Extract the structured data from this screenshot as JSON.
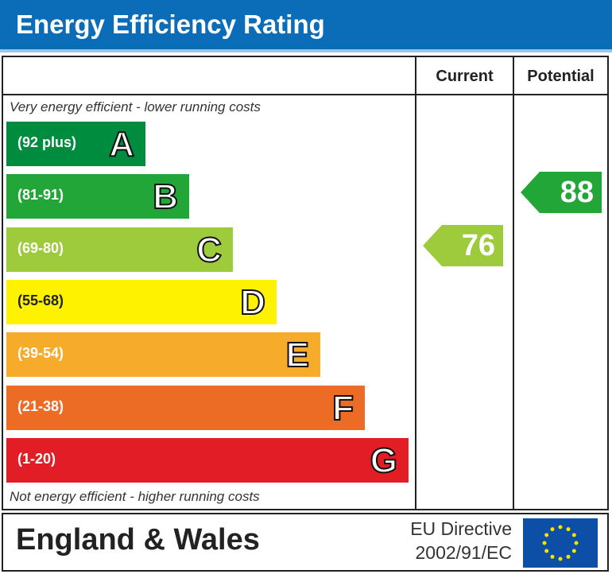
{
  "title": "Energy Efficiency Rating",
  "columns": {
    "current": "Current",
    "potential": "Potential"
  },
  "notes": {
    "top": "Very energy efficient - lower running costs",
    "bottom": "Not energy efficient - higher running costs"
  },
  "chart_data": {
    "type": "bar",
    "bands": [
      {
        "letter": "A",
        "range": "(92 plus)",
        "color": "#008c3e"
      },
      {
        "letter": "B",
        "range": "(81-91)",
        "color": "#23a638"
      },
      {
        "letter": "C",
        "range": "(69-80)",
        "color": "#9dcb3c"
      },
      {
        "letter": "D",
        "range": "(55-68)",
        "color": "#fff200"
      },
      {
        "letter": "E",
        "range": "(39-54)",
        "color": "#f6ab2a"
      },
      {
        "letter": "F",
        "range": "(21-38)",
        "color": "#ec6b25"
      },
      {
        "letter": "G",
        "range": "(1-20)",
        "color": "#e21d26"
      }
    ],
    "current": {
      "value": "76",
      "band": "C"
    },
    "potential": {
      "value": "88",
      "band": "B"
    }
  },
  "footer": {
    "region": "England & Wales",
    "directive_line1": "EU Directive",
    "directive_line2": "2002/91/EC",
    "flag_icon": "eu-flag-icon"
  }
}
